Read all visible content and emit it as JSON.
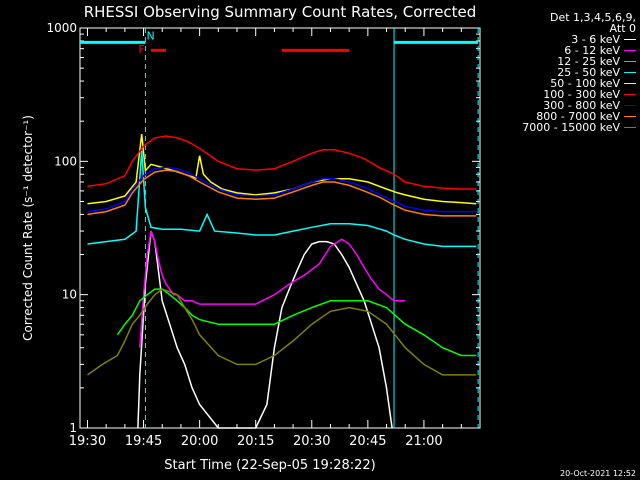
{
  "chart_data": {
    "type": "line",
    "title": "RHESSI Observing Summary Count Rates, Corrected",
    "xlabel": "Start Time (22-Sep-05 19:28:22)",
    "ylabel": "Corrected Count Rate (s⁻¹ detector⁻¹)",
    "yscale": "log",
    "ylim": [
      1,
      1000
    ],
    "xlim_minutes": [
      -2,
      105
    ],
    "x_tick_labels": [
      "19:30",
      "19:45",
      "20:00",
      "20:15",
      "20:30",
      "20:45",
      "21:00"
    ],
    "x_tick_minutes": [
      0,
      15,
      30,
      45,
      60,
      75,
      90
    ],
    "y_tick_labels": [
      "1",
      "10",
      "100",
      "1000"
    ],
    "y_tick_values": [
      1,
      10,
      100,
      1000
    ],
    "legend_header": [
      "Det 1,3,4,5,6,9,",
      "Att 0"
    ],
    "annotations": [
      {
        "text": "F",
        "color": "#ff0000"
      },
      {
        "text": "N",
        "color": "#00ffff"
      }
    ],
    "flag_bars": [
      {
        "color": "#00ffff",
        "x_start": -2,
        "x_end": 15.5,
        "y": 780
      },
      {
        "color": "#ff0000",
        "x_start": 17,
        "x_end": 21,
        "y": 680
      },
      {
        "color": "#ff0000",
        "x_start": 52,
        "x_end": 70,
        "y": 680
      },
      {
        "color": "#00ffff",
        "x_start": 82,
        "x_end": 104.5,
        "y": 780
      }
    ],
    "vlines": [
      {
        "x": 15.5,
        "color": "#00ffff",
        "dashed": true
      },
      {
        "x": 82,
        "color": "#00ffff",
        "dashed": false
      },
      {
        "x": 104.5,
        "color": "#00ffff",
        "dashed": true
      }
    ],
    "series": [
      {
        "name": "3 - 6 keV",
        "color": "#ffffff",
        "x": [
          13.5,
          14,
          15.5,
          17,
          18,
          19,
          20,
          22,
          24,
          26,
          28,
          30,
          35,
          40,
          45,
          48,
          50,
          52,
          54,
          56,
          58,
          60,
          62,
          64,
          66,
          68,
          70,
          72,
          74,
          76,
          78,
          80,
          81.5
        ],
        "y": [
          1,
          2.5,
          12,
          30,
          25,
          15,
          9,
          6,
          4,
          3,
          2,
          1.5,
          1,
          1,
          1,
          1.5,
          4,
          8,
          11,
          15,
          20,
          24,
          25,
          25,
          24,
          20,
          16,
          12,
          9,
          6,
          4,
          2,
          1
        ]
      },
      {
        "name": "6 - 12 keV",
        "color": "#ff00ff",
        "x": [
          14,
          15,
          16,
          17,
          18,
          19,
          20,
          21,
          22,
          23,
          24,
          26,
          28,
          30,
          35,
          40,
          45,
          50,
          54,
          58,
          62,
          65,
          68,
          70,
          72,
          74,
          76,
          78,
          80,
          82,
          84,
          85
        ],
        "y": [
          4,
          10,
          20,
          30,
          25,
          18,
          14,
          12,
          11,
          10,
          10,
          9,
          9,
          8.5,
          8.5,
          8.5,
          8.5,
          10,
          12,
          14,
          17,
          23,
          26,
          24,
          20,
          16,
          13,
          11,
          10,
          9,
          9,
          9
        ]
      },
      {
        "name": "12 - 25 keV",
        "color": "#00ff00",
        "x": [
          8,
          10,
          12,
          14,
          16,
          18,
          20,
          22,
          24,
          26,
          28,
          30,
          35,
          40,
          45,
          50,
          55,
          60,
          65,
          70,
          75,
          80,
          85,
          90,
          95,
          100,
          104
        ],
        "y": [
          5,
          6,
          7,
          9,
          10,
          11,
          11,
          10,
          9,
          8,
          7,
          6.5,
          6,
          6,
          6,
          6,
          7,
          8,
          9,
          9,
          9,
          8,
          6,
          5,
          4,
          3.5,
          3.5
        ]
      },
      {
        "name": "25 - 50 keV",
        "color": "#00ffff",
        "x": [
          0,
          5,
          10,
          13,
          14.5,
          15.5,
          17,
          20,
          25,
          30,
          32,
          34,
          40,
          45,
          50,
          55,
          60,
          65,
          70,
          75,
          80,
          82,
          85,
          90,
          95,
          100,
          104
        ],
        "y": [
          24,
          25,
          26,
          30,
          120,
          45,
          32,
          31,
          31,
          30,
          40,
          30,
          29,
          28,
          28,
          30,
          32,
          34,
          34,
          33,
          30,
          28,
          26,
          24,
          23,
          23,
          23
        ]
      },
      {
        "name": "50 - 100 keV",
        "color": "#ffff00",
        "x": [
          0,
          5,
          10,
          13,
          14.5,
          15.5,
          17,
          20,
          23,
          26,
          29,
          30,
          31,
          33,
          36,
          40,
          45,
          50,
          55,
          60,
          65,
          70,
          75,
          80,
          83,
          85,
          90,
          95,
          100,
          104
        ],
        "y": [
          48,
          50,
          55,
          70,
          160,
          85,
          95,
          90,
          85,
          80,
          75,
          110,
          80,
          70,
          62,
          58,
          56,
          58,
          62,
          70,
          74,
          74,
          70,
          62,
          58,
          56,
          52,
          50,
          49,
          48
        ]
      },
      {
        "name": "100 - 300 keV",
        "color": "#ff0000",
        "x": [
          0,
          5,
          10,
          12,
          15,
          18,
          21,
          24,
          27,
          30,
          35,
          40,
          45,
          50,
          55,
          60,
          63,
          66,
          70,
          74,
          78,
          82,
          85,
          90,
          95,
          100,
          104
        ],
        "y": [
          65,
          68,
          78,
          100,
          130,
          150,
          155,
          150,
          140,
          125,
          100,
          88,
          86,
          88,
          100,
          115,
          122,
          122,
          115,
          105,
          90,
          80,
          70,
          65,
          63,
          62,
          62
        ]
      },
      {
        "name": "300 - 800 keV",
        "color": "#0000ff",
        "x": [
          0,
          5,
          10,
          12,
          15,
          18,
          21,
          24,
          27,
          30,
          35,
          40,
          45,
          50,
          55,
          60,
          63,
          66,
          70,
          74,
          78,
          82,
          85,
          90,
          95,
          100,
          104
        ],
        "y": [
          42,
          44,
          50,
          62,
          78,
          88,
          90,
          88,
          82,
          74,
          62,
          56,
          55,
          56,
          62,
          70,
          74,
          74,
          70,
          64,
          57,
          50,
          46,
          43,
          42,
          42,
          42
        ]
      },
      {
        "name": "800 - 7000 keV",
        "color": "#ff8000",
        "x": [
          0,
          5,
          10,
          12,
          15,
          18,
          21,
          24,
          27,
          30,
          35,
          40,
          45,
          50,
          55,
          60,
          63,
          66,
          70,
          74,
          78,
          82,
          85,
          90,
          95,
          100,
          104
        ],
        "y": [
          40,
          42,
          47,
          58,
          73,
          83,
          86,
          84,
          78,
          70,
          59,
          53,
          52,
          53,
          59,
          66,
          70,
          70,
          66,
          60,
          54,
          47,
          43,
          40,
          39,
          39,
          39
        ]
      },
      {
        "name": "7000 - 15000 keV",
        "color": "#808000",
        "x": [
          0,
          4,
          8,
          10,
          12,
          14,
          16,
          18,
          20,
          22,
          24,
          26,
          28,
          30,
          35,
          40,
          45,
          50,
          55,
          60,
          65,
          70,
          75,
          80,
          85,
          90,
          95,
          100,
          104
        ],
        "y": [
          2.5,
          3,
          3.5,
          4.5,
          6,
          7,
          8.5,
          10,
          11,
          10.5,
          10,
          8,
          6.5,
          5,
          3.5,
          3,
          3,
          3.5,
          4.5,
          6,
          7.5,
          8,
          7.5,
          6,
          4,
          3,
          2.5,
          2.5,
          2.5
        ]
      }
    ]
  },
  "footer": {
    "timestamp": "20-Oct-2021 12:52"
  }
}
